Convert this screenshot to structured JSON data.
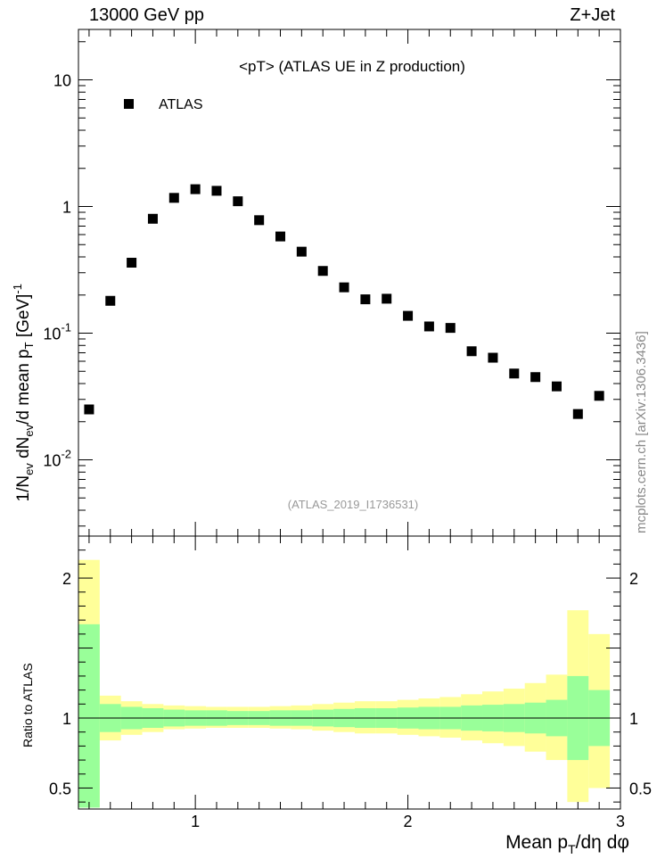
{
  "header": {
    "left": "13000 GeV pp",
    "right": "Z+Jet"
  },
  "side_label": "mcplots.cern.ch [arXiv:1306.3436]",
  "chart_data": [
    {
      "type": "scatter",
      "title": "<pT>  (ATLAS UE in Z production)",
      "analysis_label": "(ATLAS_2019_I1736531)",
      "ylabel": "1/N_ev dN_ev/d mean p_T [GeV]^-1",
      "yscale": "log",
      "ylim": [
        0.0025,
        25
      ],
      "xlim": [
        0.45,
        3.0
      ],
      "yticks": [
        {
          "value": 0.01,
          "label": "10^-2"
        },
        {
          "value": 0.1,
          "label": "10^-1"
        },
        {
          "value": 1,
          "label": "1"
        },
        {
          "value": 10,
          "label": "10"
        }
      ],
      "legend": {
        "position": "top-left",
        "entries": [
          "ATLAS"
        ]
      },
      "series": [
        {
          "name": "ATLAS",
          "color": "#000000",
          "marker": "square",
          "x": [
            0.5,
            0.6,
            0.7,
            0.8,
            0.9,
            1.0,
            1.1,
            1.2,
            1.3,
            1.4,
            1.5,
            1.6,
            1.7,
            1.8,
            1.9,
            2.0,
            2.1,
            2.2,
            2.3,
            2.4,
            2.5,
            2.6,
            2.7,
            2.8,
            2.9
          ],
          "y": [
            0.025,
            0.18,
            0.36,
            0.8,
            1.17,
            1.37,
            1.33,
            1.1,
            0.78,
            0.58,
            0.44,
            0.31,
            0.23,
            0.185,
            0.187,
            0.137,
            0.113,
            0.11,
            0.072,
            0.064,
            0.048,
            0.045,
            0.038,
            0.023,
            0.032
          ]
        }
      ]
    },
    {
      "type": "area",
      "ylabel": "Ratio to ATLAS",
      "xlabel": "Mean p_T/dη dφ",
      "xlim": [
        0.45,
        3.0
      ],
      "ylim": [
        0.35,
        2.3
      ],
      "xticks": [
        {
          "value": 1,
          "label": "1"
        },
        {
          "value": 2,
          "label": "2"
        },
        {
          "value": 3,
          "label": "3"
        }
      ],
      "yticks": [
        {
          "value": 0.5,
          "label": "0.5"
        },
        {
          "value": 1,
          "label": "1"
        },
        {
          "value": 2,
          "label": "2"
        }
      ],
      "reference_line": 1,
      "bins": [
        0.45,
        0.55,
        0.65,
        0.75,
        0.85,
        0.95,
        1.05,
        1.15,
        1.25,
        1.35,
        1.45,
        1.55,
        1.65,
        1.75,
        1.85,
        1.95,
        2.05,
        2.15,
        2.25,
        2.35,
        2.45,
        2.55,
        2.65,
        2.75,
        2.85,
        2.95
      ],
      "bands": [
        {
          "name": "stat",
          "color": "#99ff99",
          "lo": [
            0.36,
            0.9,
            0.92,
            0.93,
            0.94,
            0.945,
            0.945,
            0.95,
            0.95,
            0.945,
            0.945,
            0.94,
            0.935,
            0.93,
            0.93,
            0.925,
            0.92,
            0.92,
            0.91,
            0.905,
            0.9,
            0.89,
            0.87,
            0.7,
            0.8
          ],
          "hi": [
            1.67,
            1.1,
            1.08,
            1.07,
            1.06,
            1.055,
            1.055,
            1.05,
            1.05,
            1.055,
            1.055,
            1.06,
            1.065,
            1.07,
            1.07,
            1.075,
            1.08,
            1.08,
            1.09,
            1.095,
            1.1,
            1.11,
            1.13,
            1.3,
            1.2
          ]
        },
        {
          "name": "total",
          "color": "#ffff99",
          "lo": [
            0.36,
            0.84,
            0.88,
            0.9,
            0.92,
            0.925,
            0.93,
            0.93,
            0.93,
            0.925,
            0.92,
            0.91,
            0.9,
            0.89,
            0.89,
            0.88,
            0.87,
            0.86,
            0.84,
            0.82,
            0.8,
            0.76,
            0.7,
            0.4,
            0.5
          ],
          "hi": [
            2.13,
            1.16,
            1.12,
            1.1,
            1.09,
            1.085,
            1.08,
            1.08,
            1.08,
            1.085,
            1.09,
            1.1,
            1.11,
            1.12,
            1.12,
            1.13,
            1.14,
            1.15,
            1.17,
            1.19,
            1.21,
            1.25,
            1.31,
            1.77,
            1.6
          ]
        }
      ]
    }
  ]
}
